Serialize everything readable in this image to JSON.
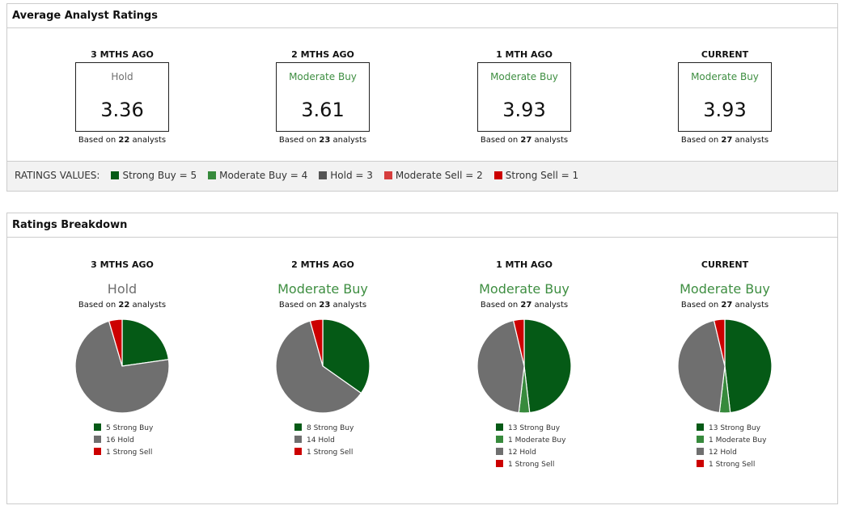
{
  "colors": {
    "strong_buy": "#055a16",
    "moderate_buy": "#378a3c",
    "hold": "#6f6f6f",
    "moderate_sell": "#d63d3d",
    "strong_sell": "#cc0000",
    "moderate_buy_text": "#3e8e41",
    "hold_text": "#6f6f6f"
  },
  "average": {
    "title": "Average Analyst Ratings",
    "periods": [
      {
        "label": "3 MTHS AGO",
        "rating": "Hold",
        "value": "3.36",
        "analysts": "22",
        "tone": "hold"
      },
      {
        "label": "2 MTHS AGO",
        "rating": "Moderate Buy",
        "value": "3.61",
        "analysts": "23",
        "tone": "buy"
      },
      {
        "label": "1 MTH AGO",
        "rating": "Moderate Buy",
        "value": "3.93",
        "analysts": "27",
        "tone": "buy"
      },
      {
        "label": "CURRENT",
        "rating": "Moderate Buy",
        "value": "3.93",
        "analysts": "27",
        "tone": "buy"
      }
    ],
    "based_prefix": "Based on",
    "based_suffix": "analysts",
    "legend_title": "RATINGS VALUES:",
    "legend": [
      {
        "label": "Strong Buy = 5",
        "color": "#055a16"
      },
      {
        "label": "Moderate Buy = 4",
        "color": "#378a3c"
      },
      {
        "label": "Hold = 3",
        "color": "#555555"
      },
      {
        "label": "Moderate Sell = 2",
        "color": "#d63d3d"
      },
      {
        "label": "Strong Sell = 1",
        "color": "#cc0000"
      }
    ]
  },
  "breakdown": {
    "title": "Ratings Breakdown",
    "periods": [
      {
        "label": "3 MTHS AGO",
        "rating": "Hold",
        "analysts": "22",
        "tone": "hold",
        "slices": [
          {
            "label": "5 Strong Buy",
            "count": 5,
            "color": "#055a16"
          },
          {
            "label": "16 Hold",
            "count": 16,
            "color": "#6f6f6f"
          },
          {
            "label": "1 Strong Sell",
            "count": 1,
            "color": "#cc0000"
          }
        ]
      },
      {
        "label": "2 MTHS AGO",
        "rating": "Moderate Buy",
        "analysts": "23",
        "tone": "buy",
        "slices": [
          {
            "label": "8 Strong Buy",
            "count": 8,
            "color": "#055a16"
          },
          {
            "label": "14 Hold",
            "count": 14,
            "color": "#6f6f6f"
          },
          {
            "label": "1 Strong Sell",
            "count": 1,
            "color": "#cc0000"
          }
        ]
      },
      {
        "label": "1 MTH AGO",
        "rating": "Moderate Buy",
        "analysts": "27",
        "tone": "buy",
        "slices": [
          {
            "label": "13 Strong Buy",
            "count": 13,
            "color": "#055a16"
          },
          {
            "label": "1 Moderate Buy",
            "count": 1,
            "color": "#378a3c"
          },
          {
            "label": "12 Hold",
            "count": 12,
            "color": "#6f6f6f"
          },
          {
            "label": "1 Strong Sell",
            "count": 1,
            "color": "#cc0000"
          }
        ]
      },
      {
        "label": "CURRENT",
        "rating": "Moderate Buy",
        "analysts": "27",
        "tone": "buy",
        "slices": [
          {
            "label": "13 Strong Buy",
            "count": 13,
            "color": "#055a16"
          },
          {
            "label": "1 Moderate Buy",
            "count": 1,
            "color": "#378a3c"
          },
          {
            "label": "12 Hold",
            "count": 12,
            "color": "#6f6f6f"
          },
          {
            "label": "1 Strong Sell",
            "count": 1,
            "color": "#cc0000"
          }
        ]
      }
    ]
  }
}
